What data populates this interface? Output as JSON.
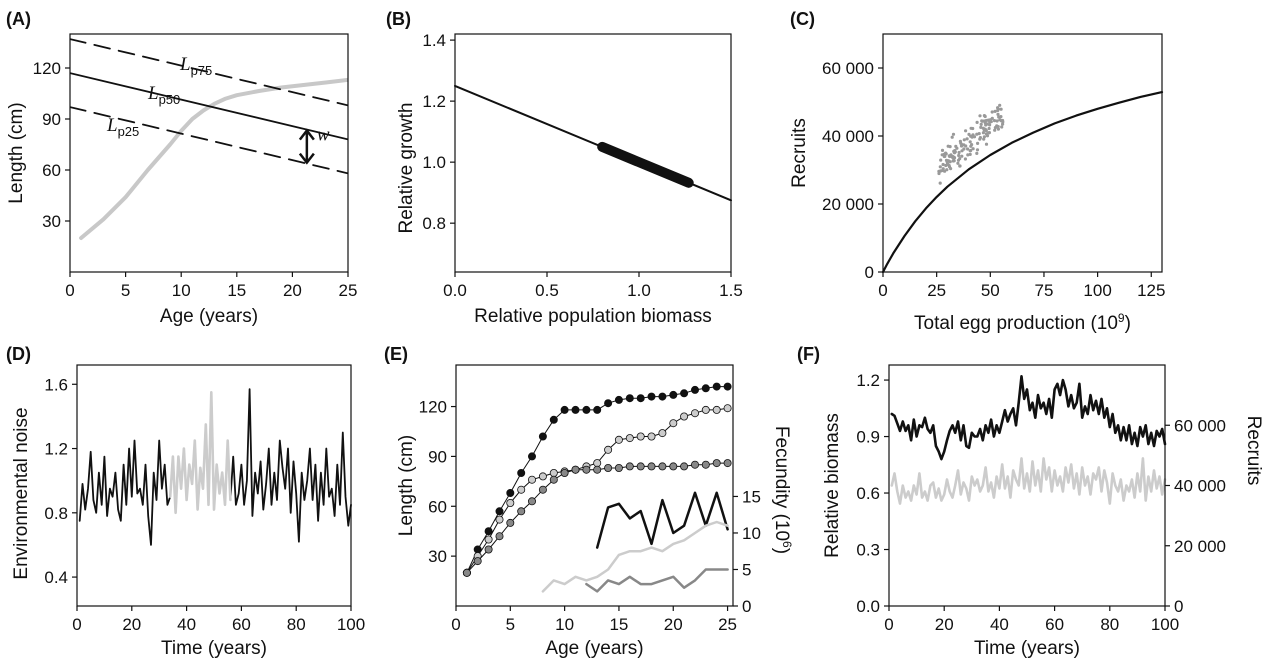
{
  "chart_data": [
    {
      "id": "A",
      "panel_label": "(A)",
      "type": "line",
      "xlabel": "Age (years)",
      "ylabel": "Length (cm)",
      "xlim": [
        0,
        25
      ],
      "ylim": [
        0,
        140
      ],
      "xticks": [
        0,
        5,
        10,
        15,
        20,
        25
      ],
      "yticks": [
        30,
        60,
        90,
        120
      ],
      "series": [
        {
          "role": "growth",
          "color": "#c8c8c8",
          "style": "solid",
          "x": [
            1,
            3,
            5,
            7,
            9,
            10,
            11,
            12,
            13,
            14,
            15,
            17,
            19,
            21,
            23,
            25
          ],
          "y": [
            20,
            31,
            44,
            60,
            75,
            83,
            90,
            95,
            99,
            102,
            104,
            106.5,
            108.5,
            110,
            111.5,
            113
          ]
        },
        {
          "name": "L",
          "sub": "p75",
          "color": "#111111",
          "style": "dashed",
          "x": [
            0,
            25
          ],
          "y": [
            137,
            98
          ]
        },
        {
          "name": "L",
          "sub": "p50",
          "color": "#111111",
          "style": "solid",
          "x": [
            0,
            25
          ],
          "y": [
            117,
            78
          ]
        },
        {
          "name": "L",
          "sub": "p25",
          "color": "#111111",
          "style": "dashed",
          "x": [
            0,
            25
          ],
          "y": [
            97,
            58
          ]
        }
      ],
      "annotations": [
        {
          "text": "w",
          "x": 21.3,
          "y": 81
        }
      ]
    },
    {
      "id": "B",
      "panel_label": "(B)",
      "type": "line",
      "xlabel": "Relative population biomass",
      "ylabel": "Relative growth",
      "xlim": [
        0,
        1.5
      ],
      "ylim": [
        0.64,
        1.42
      ],
      "xticks": [
        "0.0",
        "0.5",
        "1.0",
        "1.5"
      ],
      "yticks": [
        "0.8",
        "1.0",
        "1.2",
        "1.4"
      ],
      "line": {
        "x": [
          0,
          1.5
        ],
        "y": [
          1.25,
          0.875
        ]
      },
      "highlight": {
        "x": [
          0.8,
          1.27
        ]
      }
    },
    {
      "id": "C",
      "panel_label": "(C)",
      "type": "scatter",
      "xlabel": "Total egg production (10",
      "xlabel_sup": "9",
      "xlabel_end": ")",
      "ylabel": "Recruits",
      "xlim": [
        0,
        130
      ],
      "ylim": [
        0,
        70000
      ],
      "xticks": [
        0,
        25,
        50,
        75,
        100,
        125
      ],
      "yticks": [
        0,
        20000,
        40000,
        60000
      ],
      "ytick_labels": [
        "0",
        "20 000",
        "40 000",
        "60 000"
      ],
      "curve": {
        "x": [
          0,
          2,
          5,
          10,
          15,
          20,
          25,
          30,
          40,
          50,
          60,
          70,
          80,
          90,
          100,
          110,
          120,
          130
        ],
        "y": [
          0,
          2400,
          5700,
          10600,
          14900,
          18700,
          22100,
          25100,
          30200,
          34400,
          38000,
          41000,
          43700,
          46000,
          48000,
          49800,
          51500,
          52900
        ]
      },
      "points": {
        "color": "#999999",
        "x_range": [
          26,
          56
        ],
        "center": [
          41,
          39000
        ],
        "count": 150
      }
    },
    {
      "id": "D",
      "panel_label": "(D)",
      "type": "line",
      "xlabel": "Time (years)",
      "ylabel": "Environmental noise",
      "xlim": [
        0,
        100
      ],
      "ylim": [
        0.22,
        1.72
      ],
      "xticks": [
        0,
        20,
        40,
        60,
        80,
        100
      ],
      "yticks": [
        "0.4",
        "0.8",
        "1.2",
        "1.6"
      ],
      "gray_range": [
        34,
        56
      ],
      "series": [
        {
          "color": "#111111",
          "y": [
            0.75,
            0.98,
            0.82,
            0.95,
            1.18,
            0.88,
            0.8,
            1.05,
            0.85,
            1.15,
            0.78,
            0.95,
            0.9,
            1.05,
            0.82,
            0.75,
            1.1,
            0.85,
            1.2,
            0.9,
            1.25,
            0.92,
            0.95,
            0.85,
            1.1,
            0.78,
            0.6,
            1.05,
            0.88,
            1.25,
            0.95,
            1.1,
            0.85,
            0.9,
            1.15,
            0.8,
            1.15,
            0.95,
            1.2,
            0.88,
            1.1,
            0.98,
            1.25,
            0.82,
            1.08,
            0.95,
            1.35,
            0.85,
            1.55,
            0.82,
            1.1,
            0.92,
            1.05,
            0.85,
            1.25,
            0.88,
            1.15,
            0.85,
            0.92,
            1.1,
            0.85,
            1.0,
            1.57,
            0.78,
            1.05,
            0.92,
            1.12,
            0.82,
            0.98,
            1.2,
            0.85,
            1.05,
            0.88,
            1.25,
            1.08,
            0.95,
            1.2,
            0.8,
            1.12,
            0.92,
            0.62,
            1.05,
            0.88,
            1.0,
            1.2,
            0.88,
            1.1,
            0.75,
            1.05,
            0.85,
            1.2,
            0.9,
            0.95,
            0.78,
            1.1,
            0.85,
            1.3,
            0.9,
            0.72,
            0.85
          ]
        }
      ]
    },
    {
      "id": "E",
      "panel_label": "(E)",
      "type": "line",
      "xlabel": "Age (years)",
      "ylabel": "Length (cm)",
      "ylabel_right": "Fecundity (10",
      "ylabel_right_sup": "6",
      "ylabel_right_end": ")",
      "xlim": [
        0,
        25.5
      ],
      "ylim": [
        0,
        145
      ],
      "ylim_right": [
        0,
        33
      ],
      "xticks": [
        0,
        5,
        10,
        15,
        20,
        25
      ],
      "yticks": [
        30,
        60,
        90,
        120
      ],
      "yticks_right": [
        0,
        5,
        10,
        15
      ],
      "length_series": [
        {
          "color": "#111111",
          "y": [
            20,
            34,
            45,
            57,
            68,
            80,
            90,
            102,
            112,
            118,
            118,
            118,
            118,
            122,
            124,
            125,
            125,
            126,
            126,
            127,
            128,
            130,
            131,
            132,
            132
          ]
        },
        {
          "color": "#cccccc",
          "y": [
            20,
            30,
            40,
            52,
            62,
            70,
            76,
            78,
            80,
            81,
            82,
            84,
            86,
            94,
            100,
            101,
            102,
            102,
            104,
            110,
            114,
            116,
            118,
            118,
            119
          ]
        },
        {
          "color": "#888888",
          "y": [
            20,
            27,
            34,
            42,
            50,
            57,
            63,
            70,
            76,
            80,
            82,
            82,
            82,
            83,
            83,
            84,
            84,
            84,
            84,
            84,
            84,
            85,
            85,
            86,
            86
          ]
        }
      ],
      "fecundity_series": [
        {
          "color": "#111111",
          "x": [
            13,
            14,
            15,
            16,
            17,
            18,
            19,
            20,
            21,
            22,
            23,
            24,
            25
          ],
          "y": [
            8,
            13.5,
            14,
            12,
            13,
            8.5,
            14.5,
            10,
            11,
            15.5,
            11,
            15.5,
            10.5
          ]
        },
        {
          "color": "#cccccc",
          "x": [
            8,
            9,
            10,
            11,
            12,
            13,
            14,
            15,
            16,
            17,
            18,
            19,
            20,
            21,
            22,
            23,
            24,
            25
          ],
          "y": [
            2,
            3.5,
            3,
            4,
            3.5,
            4,
            5,
            7,
            7.5,
            7.5,
            8,
            7.5,
            8.5,
            9,
            10,
            11,
            11.5,
            11
          ]
        },
        {
          "color": "#888888",
          "x": [
            12,
            13,
            14,
            15,
            16,
            17,
            18,
            19,
            20,
            21,
            22,
            23,
            24,
            25
          ],
          "y": [
            3,
            2,
            3.5,
            3,
            4,
            3,
            3,
            3.5,
            4,
            2.5,
            3.5,
            5,
            5,
            5
          ]
        }
      ]
    },
    {
      "id": "F",
      "panel_label": "(F)",
      "type": "line",
      "xlabel": "Time (years)",
      "ylabel": "Relative biomass",
      "ylabel_right": "Recruits",
      "xlim": [
        0,
        100
      ],
      "ylim": [
        0,
        1.28
      ],
      "ylim_right": [
        0,
        80000
      ],
      "xticks": [
        0,
        20,
        40,
        60,
        80,
        100
      ],
      "yticks": [
        "0.0",
        "0.3",
        "0.6",
        "0.9",
        "1.2"
      ],
      "yticks_right": [
        0,
        20000,
        40000,
        60000
      ],
      "yticks_right_labels": [
        "0",
        "20 000",
        "40 000",
        "60 000"
      ],
      "series": [
        {
          "name": "Relative biomass",
          "axis": "left",
          "color": "#111111",
          "y": [
            1.02,
            1.01,
            0.97,
            0.93,
            0.98,
            0.93,
            0.96,
            0.88,
            0.99,
            0.9,
            0.96,
            0.95,
            1.0,
            0.94,
            0.92,
            0.96,
            0.85,
            0.82,
            0.78,
            0.82,
            0.88,
            0.93,
            0.96,
            0.92,
            0.98,
            0.88,
            0.96,
            0.85,
            0.84,
            0.92,
            0.9,
            0.9,
            0.94,
            0.88,
            0.96,
            0.92,
            0.99,
            0.9,
            0.96,
            0.92,
            0.98,
            1.04,
            0.98,
            1.02,
            1.05,
            0.96,
            1.08,
            1.22,
            1.1,
            1.15,
            1.04,
            1.08,
            1.0,
            1.12,
            1.05,
            1.08,
            1.02,
            1.1,
            1.0,
            1.15,
            1.18,
            1.12,
            1.2,
            1.15,
            1.06,
            1.12,
            1.05,
            1.08,
            1.18,
            1.0,
            1.06,
            1.02,
            1.12,
            1.04,
            1.09,
            1.02,
            1.1,
            1.0,
            1.05,
            0.95,
            1.02,
            0.92,
            0.96,
            0.88,
            0.95,
            0.88,
            0.96,
            0.86,
            0.92,
            0.85,
            0.95,
            0.9,
            0.96,
            0.86,
            0.92,
            0.85,
            0.93,
            0.9,
            0.94,
            0.86
          ]
        },
        {
          "name": "Recruits",
          "axis": "right",
          "color": "#cccccc",
          "y": [
            40000,
            44000,
            38000,
            34000,
            40000,
            36000,
            38000,
            35000,
            40000,
            37000,
            44000,
            36000,
            38000,
            35000,
            40000,
            41000,
            36000,
            39000,
            35000,
            37000,
            42000,
            38000,
            36000,
            40000,
            45000,
            37000,
            41000,
            39000,
            35000,
            43000,
            40000,
            42000,
            38000,
            40000,
            46000,
            38000,
            41000,
            36000,
            43000,
            39000,
            47000,
            39000,
            43000,
            36000,
            45000,
            42000,
            40000,
            49000,
            39000,
            44000,
            38000,
            48000,
            40000,
            45000,
            38000,
            49000,
            42000,
            46000,
            38000,
            45000,
            40000,
            43000,
            38000,
            46000,
            41000,
            47000,
            39000,
            44000,
            37000,
            46000,
            40000,
            43000,
            37000,
            44000,
            42000,
            46000,
            38000,
            45000,
            41000,
            34000,
            44000,
            40000,
            38000,
            42000,
            35000,
            40000,
            38000,
            42000,
            36000,
            44000,
            38000,
            49000,
            35000,
            43000,
            38000,
            45000,
            39000,
            43000,
            37000,
            42000
          ]
        }
      ]
    }
  ]
}
